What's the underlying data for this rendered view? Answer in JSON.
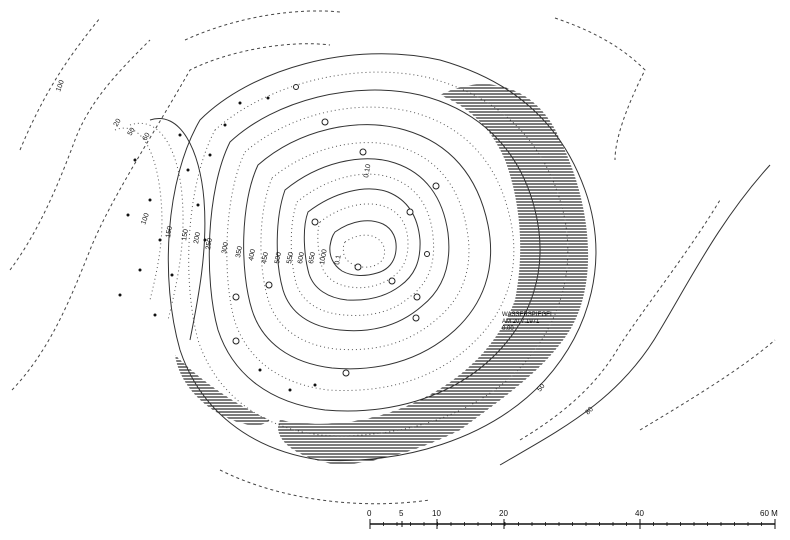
{
  "map": {
    "contour_labels": [
      {
        "text": "100"
      },
      {
        "text": "20"
      },
      {
        "text": "50"
      },
      {
        "text": "60"
      },
      {
        "text": "100"
      },
      {
        "text": "150"
      },
      {
        "text": "150"
      },
      {
        "text": "200"
      },
      {
        "text": "250"
      },
      {
        "text": "300"
      },
      {
        "text": "350"
      },
      {
        "text": "400"
      },
      {
        "text": "450"
      },
      {
        "text": "500"
      },
      {
        "text": "550"
      },
      {
        "text": "600"
      },
      {
        "text": "650"
      },
      {
        "text": "1000"
      },
      {
        "text": "0.1"
      },
      {
        "text": "0.10"
      },
      {
        "text": "50"
      },
      {
        "text": "80"
      }
    ],
    "water_level_note": [
      "WASSERSPIEGEL",
      "AM 20.7.1971",
      "0.00"
    ]
  },
  "scale_bar": {
    "ticks": [
      "0",
      "5",
      "10",
      "20",
      "40",
      "60 M"
    ]
  }
}
